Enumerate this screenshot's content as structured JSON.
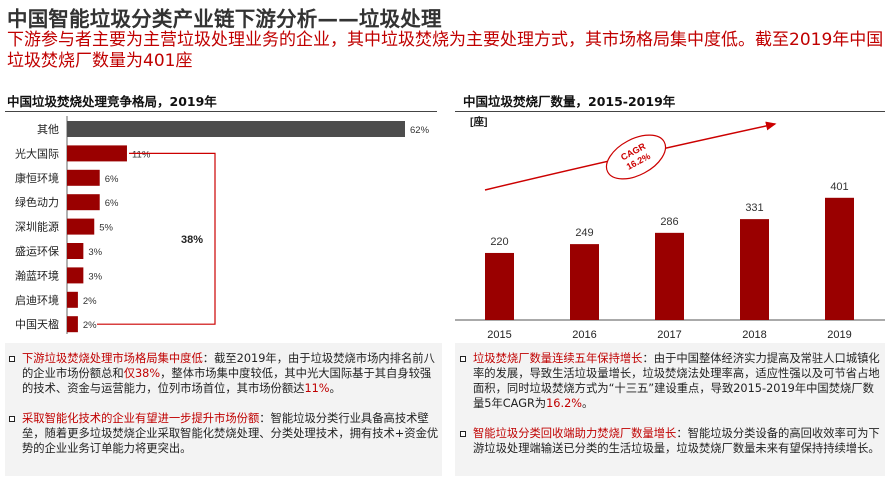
{
  "header": {
    "title": "中国智能垃圾分类产业链下游分析——垃圾处理",
    "subtitle": "下游参与者主要为主营垃圾处理业务的企业，其中垃圾焚烧为主要处理方式，其市场格局集中度低。截至2019年中国垃圾焚烧厂数量为401座"
  },
  "colors": {
    "accent": "#9a0000",
    "gray_bar": "#4d4d4d",
    "text_red": "#c00000",
    "arrow": "#cc0000"
  },
  "chart_data": [
    {
      "type": "bar",
      "orientation": "horizontal",
      "title": "中国垃圾焚烧处理竞争格局，2019年",
      "categories": [
        "其他",
        "光大国际",
        "康恒环境",
        "绿色动力",
        "深圳能源",
        "盛运环保",
        "瀚蓝环境",
        "启迪环境",
        "中国天楹"
      ],
      "values": [
        62,
        11,
        6,
        6,
        5,
        3,
        3,
        2,
        2
      ],
      "value_labels": [
        "62%",
        "11%",
        "6%",
        "6%",
        "5%",
        "3%",
        "3%",
        "2%",
        "2%"
      ],
      "bracket_label": "38%",
      "xlim": [
        0,
        62
      ]
    },
    {
      "type": "bar",
      "title": "中国垃圾焚烧厂数量，2015-2019年",
      "unit": "[座]",
      "categories": [
        "2015",
        "2016",
        "2017",
        "2018",
        "2019"
      ],
      "values": [
        220,
        249,
        286,
        331,
        401
      ],
      "cagr_label": "CAGR",
      "cagr_value": "16.2%",
      "ylim": [
        0,
        420
      ]
    }
  ],
  "left_text": {
    "p1_head": "下游垃圾焚烧处理市场格局集中度低",
    "p1_a": "：截至2019年，由于垃圾焚烧市场内排名前八的企业市场份额总和",
    "p1_b": "仅38%",
    "p1_c": "，整体市场集中度较低，其中光大国际基于其自身较强的技术、资金与运营能力，位列市场首位，其市场份额达",
    "p1_d": "11%",
    "p1_e": "。",
    "p2_head": "采取智能化技术的企业有望进一步提升市场份额",
    "p2_body": "：智能垃圾分类行业具备高技术壁垒，随着更多垃圾焚烧企业采取智能化焚烧处理、分类处理技术，拥有技术+资金优势的企业业务订单能力将更突出。"
  },
  "right_text": {
    "p1_head": "垃圾焚烧厂数量连续五年保持增长",
    "p1_a": "：由于中国整体经济实力提高及常驻人口城镇化率的发展，导致生活垃圾量增长，垃圾焚烧法处理率高，适应性强以及可节省占地面积，同时垃圾焚烧方式为“十三五”建设重点，导致2015-2019年中国焚烧厂数量5年CAGR为",
    "p1_b": "16.2%",
    "p1_c": "。",
    "p2_head": "智能垃圾分类回收端助力焚烧厂数量增长",
    "p2_body": "：智能垃圾分类设备的高回收效率可为下游垃圾处理端输送已分类的生活垃圾量，垃圾焚烧厂数量未来有望保持持续增长。"
  }
}
